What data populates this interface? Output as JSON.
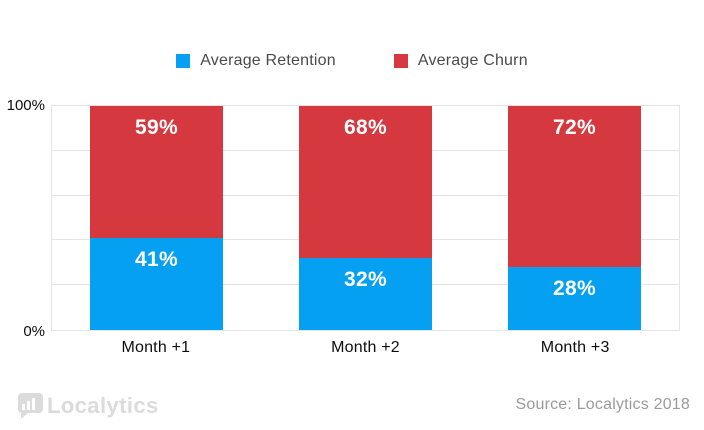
{
  "chart_data": {
    "type": "bar",
    "stacked": true,
    "categories": [
      "Month +1",
      "Month +2",
      "Month +3"
    ],
    "series": [
      {
        "name": "Average Churn",
        "color": "#d6383f",
        "values": [
          59,
          68,
          72
        ]
      },
      {
        "name": "Average Retention",
        "color": "#06a0f2",
        "values": [
          41,
          32,
          28
        ]
      }
    ],
    "value_label_format": "percent",
    "title": "",
    "xlabel": "",
    "ylabel": "",
    "ylim": [
      0,
      100
    ],
    "y_tick_labels_shown": [
      "100%",
      "0%"
    ],
    "gridline_percents": [
      20,
      40,
      60,
      80
    ],
    "grid": true,
    "legend_position": "top"
  },
  "legend": {
    "items": [
      {
        "label": "Average Retention",
        "color": "#06a0f2"
      },
      {
        "label": "Average Churn",
        "color": "#d6383f"
      }
    ]
  },
  "axis": {
    "y_max_label": "100%",
    "y_min_label": "0%"
  },
  "footer": {
    "logo_text": "Localytics",
    "source": "Source: Localytics 2018"
  },
  "colors": {
    "retention_blue": "#06a0f2",
    "churn_red": "#d6383f",
    "gridline": "#e4e4e4",
    "legend_text": "#4a4a4a",
    "axis_text": "#0d0d0d",
    "source_text": "#9b9b9b",
    "logo_gray": "#dbdbdb",
    "background": "#ffffff"
  }
}
